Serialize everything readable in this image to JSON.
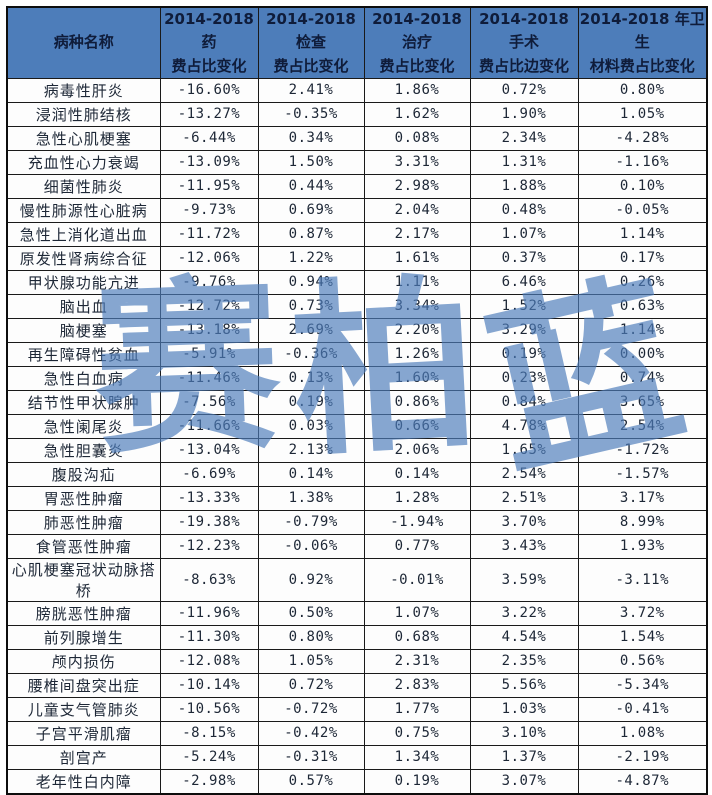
{
  "table": {
    "headers": [
      "病种名称",
      "2014-2018 药\n费占比变化",
      "2014-2018 检查\n费占比变化",
      "2014-2018 治疗\n费占比变化",
      "2014-2018 手术\n费占比边变化",
      "2014-2018 年卫生\n材料费占比变化"
    ],
    "rows": [
      {
        "name": "病毒性肝炎",
        "values": [
          "-16.60%",
          "2.41%",
          "1.86%",
          "0.72%",
          "0.80%"
        ]
      },
      {
        "name": "浸润性肺结核",
        "values": [
          "-13.27%",
          "-0.35%",
          "1.62%",
          "1.90%",
          "1.05%"
        ]
      },
      {
        "name": "急性心肌梗塞",
        "values": [
          "-6.44%",
          "0.34%",
          "0.08%",
          "2.34%",
          "-4.28%"
        ]
      },
      {
        "name": "充血性心力衰竭",
        "values": [
          "-13.09%",
          "1.50%",
          "3.31%",
          "1.31%",
          "-1.16%"
        ]
      },
      {
        "name": "细菌性肺炎",
        "values": [
          "-11.95%",
          "0.44%",
          "2.98%",
          "1.88%",
          "0.10%"
        ]
      },
      {
        "name": "慢性肺源性心脏病",
        "values": [
          "-9.73%",
          "0.69%",
          "2.04%",
          "0.48%",
          "-0.05%"
        ]
      },
      {
        "name": "急性上消化道出血",
        "values": [
          "-11.72%",
          "0.87%",
          "2.17%",
          "1.07%",
          "1.14%"
        ]
      },
      {
        "name": "原发性肾病综合征",
        "values": [
          "-12.06%",
          "1.22%",
          "1.61%",
          "0.37%",
          "0.17%"
        ]
      },
      {
        "name": "甲状腺功能亢进",
        "values": [
          "-9.76%",
          "0.94%",
          "1.11%",
          "6.46%",
          "0.26%"
        ]
      },
      {
        "name": "脑出血",
        "values": [
          "-12.72%",
          "0.73%",
          "3.34%",
          "1.52%",
          "0.63%"
        ]
      },
      {
        "name": "脑梗塞",
        "values": [
          "-13.18%",
          "2.69%",
          "2.20%",
          "3.29%",
          "1.14%"
        ]
      },
      {
        "name": "再生障碍性贫血",
        "values": [
          "-5.91%",
          "-0.36%",
          "1.26%",
          "0.19%",
          "0.00%"
        ]
      },
      {
        "name": "急性白血病",
        "values": [
          "-11.46%",
          "0.13%",
          "1.60%",
          "0.23%",
          "0.74%"
        ]
      },
      {
        "name": "结节性甲状腺肿",
        "values": [
          "-7.56%",
          "0.19%",
          "0.86%",
          "0.84%",
          "3.65%"
        ]
      },
      {
        "name": "急性阑尾炎",
        "values": [
          "-11.66%",
          "0.03%",
          "0.66%",
          "4.78%",
          "2.54%"
        ]
      },
      {
        "name": "急性胆囊炎",
        "values": [
          "-13.04%",
          "2.13%",
          "2.06%",
          "1.65%",
          "-1.72%"
        ]
      },
      {
        "name": "腹股沟疝",
        "values": [
          "-6.69%",
          "0.14%",
          "0.14%",
          "2.54%",
          "-1.57%"
        ]
      },
      {
        "name": "胃恶性肿瘤",
        "values": [
          "-13.33%",
          "1.38%",
          "1.28%",
          "2.51%",
          "3.17%"
        ]
      },
      {
        "name": "肺恶性肿瘤",
        "values": [
          "-19.38%",
          "-0.79%",
          "-1.94%",
          "3.70%",
          "8.99%"
        ]
      },
      {
        "name": "食管恶性肿瘤",
        "values": [
          "-12.23%",
          "-0.06%",
          "0.77%",
          "3.43%",
          "1.93%"
        ]
      },
      {
        "name": "心肌梗塞冠状动脉搭桥",
        "values": [
          "-8.63%",
          "0.92%",
          "-0.01%",
          "3.59%",
          "-3.11%"
        ]
      },
      {
        "name": "膀胱恶性肿瘤",
        "values": [
          "-11.96%",
          "0.50%",
          "1.07%",
          "3.22%",
          "3.72%"
        ]
      },
      {
        "name": "前列腺增生",
        "values": [
          "-11.30%",
          "0.80%",
          "0.68%",
          "4.54%",
          "1.54%"
        ]
      },
      {
        "name": "颅内损伤",
        "values": [
          "-12.08%",
          "1.05%",
          "2.31%",
          "2.35%",
          "0.56%"
        ]
      },
      {
        "name": "腰椎间盘突出症",
        "values": [
          "-10.14%",
          "0.72%",
          "2.83%",
          "5.56%",
          "-5.34%"
        ]
      },
      {
        "name": "儿童支气管肺炎",
        "values": [
          "-10.56%",
          "-0.72%",
          "1.77%",
          "1.03%",
          "-0.41%"
        ]
      },
      {
        "name": "子宫平滑肌瘤",
        "values": [
          "-8.15%",
          "-0.42%",
          "0.75%",
          "3.10%",
          "1.08%"
        ]
      },
      {
        "name": "剖宫产",
        "values": [
          "-5.24%",
          "-0.31%",
          "1.34%",
          "1.37%",
          "-2.19%"
        ]
      },
      {
        "name": "老年性白内障",
        "values": [
          "-2.98%",
          "0.57%",
          "0.19%",
          "3.07%",
          "-4.87%"
        ]
      }
    ]
  },
  "watermark": {
    "text": "赛柏蓝",
    "chars": [
      "赛",
      "柏",
      "蓝"
    ]
  },
  "colors": {
    "header_bg": "#4d7dba",
    "header_text": "#0f1c3a",
    "body_text": "#1d2736",
    "border": "#1a1a1a",
    "watermark": "rgba(77,124,186,0.68)"
  },
  "chart_data": {
    "type": "table",
    "title": "2014-2018 各病种费用占比变化",
    "columns": [
      "病种名称",
      "2014-2018 药费占比变化",
      "2014-2018 检查费占比变化",
      "2014-2018 治疗费占比变化",
      "2014-2018 手术费占比边变化",
      "2014-2018 年卫生材料费占比变化"
    ],
    "unit": "percentage points",
    "rows": [
      [
        "病毒性肝炎",
        -16.6,
        2.41,
        1.86,
        0.72,
        0.8
      ],
      [
        "浸润性肺结核",
        -13.27,
        -0.35,
        1.62,
        1.9,
        1.05
      ],
      [
        "急性心肌梗塞",
        -6.44,
        0.34,
        0.08,
        2.34,
        -4.28
      ],
      [
        "充血性心力衰竭",
        -13.09,
        1.5,
        3.31,
        1.31,
        -1.16
      ],
      [
        "细菌性肺炎",
        -11.95,
        0.44,
        2.98,
        1.88,
        0.1
      ],
      [
        "慢性肺源性心脏病",
        -9.73,
        0.69,
        2.04,
        0.48,
        -0.05
      ],
      [
        "急性上消化道出血",
        -11.72,
        0.87,
        2.17,
        1.07,
        1.14
      ],
      [
        "原发性肾病综合征",
        -12.06,
        1.22,
        1.61,
        0.37,
        0.17
      ],
      [
        "甲状腺功能亢进",
        -9.76,
        0.94,
        1.11,
        6.46,
        0.26
      ],
      [
        "脑出血",
        -12.72,
        0.73,
        3.34,
        1.52,
        0.63
      ],
      [
        "脑梗塞",
        -13.18,
        2.69,
        2.2,
        3.29,
        1.14
      ],
      [
        "再生障碍性贫血",
        -5.91,
        -0.36,
        1.26,
        0.19,
        0.0
      ],
      [
        "急性白血病",
        -11.46,
        0.13,
        1.6,
        0.23,
        0.74
      ],
      [
        "结节性甲状腺肿",
        -7.56,
        0.19,
        0.86,
        0.84,
        3.65
      ],
      [
        "急性阑尾炎",
        -11.66,
        0.03,
        0.66,
        4.78,
        2.54
      ],
      [
        "急性胆囊炎",
        -13.04,
        2.13,
        2.06,
        1.65,
        -1.72
      ],
      [
        "腹股沟疝",
        -6.69,
        0.14,
        0.14,
        2.54,
        -1.57
      ],
      [
        "胃恶性肿瘤",
        -13.33,
        1.38,
        1.28,
        2.51,
        3.17
      ],
      [
        "肺恶性肿瘤",
        -19.38,
        -0.79,
        -1.94,
        3.7,
        8.99
      ],
      [
        "食管恶性肿瘤",
        -12.23,
        -0.06,
        0.77,
        3.43,
        1.93
      ],
      [
        "心肌梗塞冠状动脉搭桥",
        -8.63,
        0.92,
        -0.01,
        3.59,
        -3.11
      ],
      [
        "膀胱恶性肿瘤",
        -11.96,
        0.5,
        1.07,
        3.22,
        3.72
      ],
      [
        "前列腺增生",
        -11.3,
        0.8,
        0.68,
        4.54,
        1.54
      ],
      [
        "颅内损伤",
        -12.08,
        1.05,
        2.31,
        2.35,
        0.56
      ],
      [
        "腰椎间盘突出症",
        -10.14,
        0.72,
        2.83,
        5.56,
        -5.34
      ],
      [
        "儿童支气管肺炎",
        -10.56,
        -0.72,
        1.77,
        1.03,
        -0.41
      ],
      [
        "子宫平滑肌瘤",
        -8.15,
        -0.42,
        0.75,
        3.1,
        1.08
      ],
      [
        "剖宫产",
        -5.24,
        -0.31,
        1.34,
        1.37,
        -2.19
      ],
      [
        "老年性白内障",
        -2.98,
        0.57,
        0.19,
        3.07,
        -4.87
      ]
    ]
  }
}
